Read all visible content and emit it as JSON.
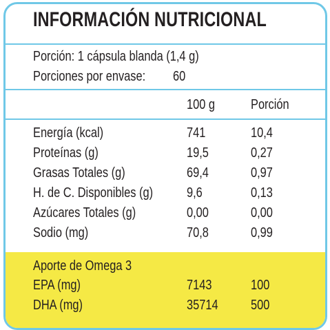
{
  "title": "INFORMACIÓN NUTRICIONAL",
  "serving": {
    "portion": "Porción: 1 cápsula blanda (1,4 g)",
    "per_container": "Porciones por envase:",
    "per_container_value": "60"
  },
  "columns": {
    "per_100g": "100 g",
    "per_portion": "Porción"
  },
  "rows": [
    {
      "label": "Energía (kcal)",
      "per_100g": "741",
      "per_portion": "10,4"
    },
    {
      "label": "Proteínas (g)",
      "per_100g": "19,5",
      "per_portion": "0,27"
    },
    {
      "label": "Grasas Totales (g)",
      "per_100g": "69,4",
      "per_portion": "0,97"
    },
    {
      "label": "H. de C. Disponibles (g)",
      "per_100g": "9,6",
      "per_portion": "0,13"
    },
    {
      "label": "Azúcares Totales (g)",
      "per_100g": "0,00",
      "per_portion": "0,00"
    },
    {
      "label": "Sodio (mg)",
      "per_100g": "70,8",
      "per_portion": "0,99"
    }
  ],
  "omega": {
    "heading": "Aporte de Omega 3",
    "rows": [
      {
        "label": "EPA (mg)",
        "per_100g": "7143",
        "per_portion": "100"
      },
      {
        "label": "DHA (mg)",
        "per_100g": "35714",
        "per_portion": "500"
      }
    ]
  },
  "colors": {
    "border": "#6fc8e7",
    "highlight": "#f5e945",
    "text": "#231f20"
  }
}
